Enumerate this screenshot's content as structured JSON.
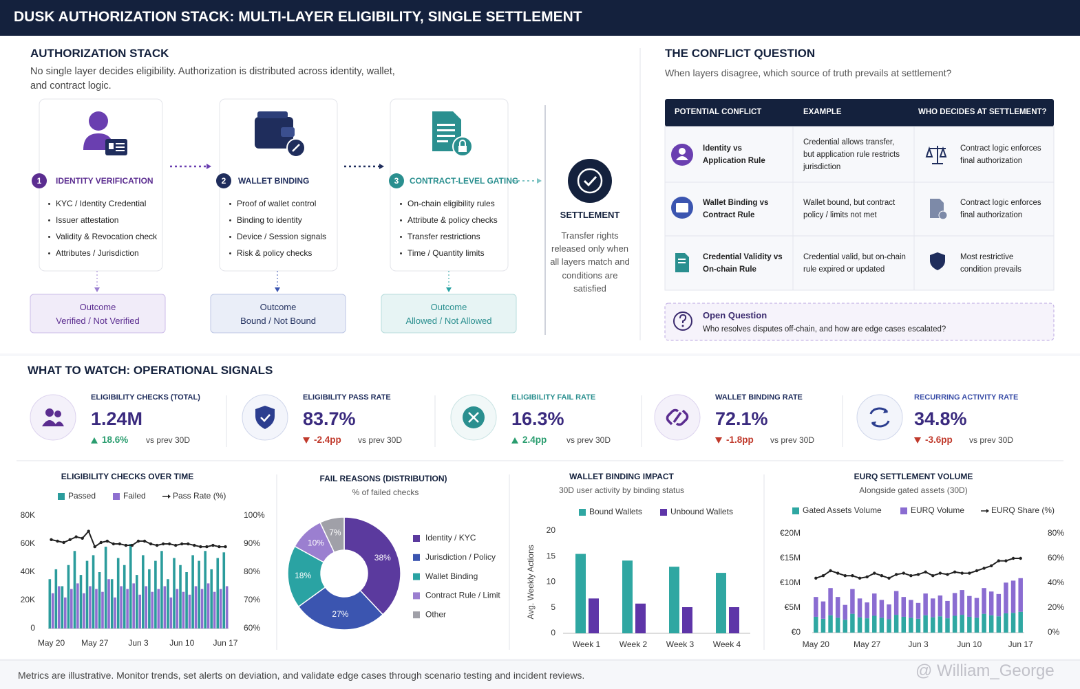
{
  "header": {
    "title": "DUSK AUTHORIZATION STACK: MULTI-LAYER ELIGIBILITY, SINGLE SETTLEMENT"
  },
  "stack": {
    "title": "AUTHORIZATION STACK",
    "description": "No single layer decides eligibility. Authorization is distributed across identity, wallet, and contract logic.",
    "steps": [
      {
        "number": 1,
        "title": "IDENTITY VERIFICATION",
        "items": [
          "KYC / Identity Credential",
          "Issuer attestation",
          "Validity & Revocation check",
          "Attributes / Jurisdiction"
        ],
        "outcome_label": "Outcome",
        "outcome": "Verified / Not Verified",
        "color": "#5b2d90"
      },
      {
        "number": 2,
        "title": "WALLET BINDING",
        "items": [
          "Proof of wallet control",
          "Binding to identity",
          "Device / Session signals",
          "Risk & policy checks"
        ],
        "outcome_label": "Outcome",
        "outcome": "Bound / Not Bound",
        "color": "#1f2d5c"
      },
      {
        "number": 3,
        "title": "CONTRACT-LEVEL GATING",
        "items": [
          "On-chain eligibility rules",
          "Attribute & policy checks",
          "Transfer restrictions",
          "Time / Quantity limits"
        ],
        "outcome_label": "Outcome",
        "outcome": "Allowed / Not Allowed",
        "color": "#2a8f8f"
      }
    ],
    "settlement": {
      "title": "SETTLEMENT",
      "text": "Transfer rights released only when all layers match and conditions are satisfied"
    }
  },
  "conflict": {
    "title": "THE CONFLICT QUESTION",
    "subtitle": "When layers disagree, which source of truth prevails at settlement?",
    "columns": [
      "POTENTIAL CONFLICT",
      "EXAMPLE",
      "WHO DECIDES AT SETTLEMENT?"
    ],
    "rows": [
      [
        "Identity vs Application Rule",
        "Credential allows transfer, but application rule restricts jurisdiction",
        "Contract logic enforces final authorization"
      ],
      [
        "Wallet Binding vs Contract Rule",
        "Wallet bound, but contract policy / limits not met",
        "Contract logic enforces final authorization"
      ],
      [
        "Credential Validity vs On-chain Rule",
        "Credential valid, but on-chain rule expired or updated",
        "Most restrictive condition prevails"
      ]
    ],
    "open_question": {
      "title": "Open Question",
      "text": "Who resolves disputes off-chain, and how are edge cases escalated?"
    }
  },
  "signals": {
    "title": "WHAT TO WATCH: OPERATIONAL SIGNALS",
    "items": [
      {
        "label": "ELIGIBILITY CHECKS (TOTAL)",
        "value": "1.24M",
        "delta": "18.6%",
        "direction": "up",
        "compare": "vs prev 30D",
        "color": "#1f2d5c"
      },
      {
        "label": "ELIGIBILITY PASS RATE",
        "value": "83.7%",
        "delta": "-2.4pp",
        "direction": "down",
        "compare": "vs prev 30D",
        "color": "#1f2d5c"
      },
      {
        "label": "ELIGIBILITY FAIL RATE",
        "value": "16.3%",
        "delta": "2.4pp",
        "direction": "up",
        "compare": "vs prev 30D",
        "color": "#2a8f8f"
      },
      {
        "label": "WALLET BINDING RATE",
        "value": "72.1%",
        "delta": "-1.8pp",
        "direction": "down",
        "compare": "vs prev 30D",
        "color": "#1f2d5c"
      },
      {
        "label": "RECURRING ACTIVITY RATE",
        "value": "34.8%",
        "delta": "-3.6pp",
        "direction": "down",
        "compare": "vs prev 30D",
        "color": "#3b4fa8"
      }
    ]
  },
  "chart_data": [
    {
      "type": "bar",
      "title": "ELIGIBILITY CHECKS OVER TIME",
      "grid": false,
      "categories": [
        "May 20",
        null,
        null,
        null,
        null,
        null,
        null,
        "May 27",
        null,
        null,
        null,
        null,
        null,
        null,
        "Jun 3",
        null,
        null,
        null,
        null,
        null,
        null,
        "Jun 10",
        null,
        null,
        null,
        null,
        null,
        null,
        "Jun 17"
      ],
      "series": [
        {
          "name": "Passed",
          "color": "#2b9c9c",
          "values": [
            35000,
            42000,
            30000,
            45000,
            55000,
            38000,
            48000,
            52000,
            40000,
            58000,
            35000,
            50000,
            45000,
            60000,
            38000,
            52000,
            42000,
            48000,
            55000,
            35000,
            50000,
            45000,
            40000,
            52000,
            48000,
            55000,
            42000,
            50000,
            54000
          ]
        },
        {
          "name": "Failed",
          "color": "#8e6fd0",
          "values": [
            25000,
            30000,
            22000,
            28000,
            32000,
            25000,
            30000,
            28000,
            26000,
            35000,
            22000,
            30000,
            28000,
            32000,
            24000,
            30000,
            26000,
            28000,
            30000,
            22000,
            28000,
            26000,
            24000,
            30000,
            28000,
            32000,
            26000,
            28000,
            30000
          ]
        },
        {
          "name": "Pass Rate (%)",
          "color": "#222222",
          "axis": "y2",
          "values": [
            91.5,
            91,
            90.5,
            91.5,
            92.5,
            92,
            94.5,
            89,
            90.5,
            91,
            90,
            90,
            89.5,
            89.5,
            91,
            91,
            90,
            89.5,
            90,
            90,
            89.5,
            90,
            90,
            89.5,
            89,
            89,
            89.5,
            89,
            89
          ]
        }
      ],
      "ylim": [
        0,
        80000
      ],
      "yticks": [
        0,
        {
          "value": 20000,
          "label": "20K"
        },
        {
          "value": 40000,
          "label": "40K"
        },
        {
          "value": 60000,
          "label": "60K"
        },
        {
          "value": 80000,
          "label": "80K"
        }
      ],
      "y2lim": [
        60,
        100
      ],
      "y2ticks": [
        {
          "value": 60,
          "label": "60%"
        },
        {
          "value": 70,
          "label": "70%"
        },
        {
          "value": 80,
          "label": "80%"
        },
        {
          "value": 90,
          "label": "90%"
        },
        {
          "value": 100,
          "label": "100%"
        }
      ]
    },
    {
      "type": "pie",
      "title": "FAIL REASONS (DISTRIBUTION)",
      "subtitle": "% of failed checks",
      "categories": [
        "Identity / KYC",
        "Jurisdiction / Policy",
        "Wallet Binding",
        "Contract Rule / Limit",
        "Other"
      ],
      "values": [
        38,
        27,
        18,
        10,
        7
      ],
      "value_labels": [
        "38%",
        "27%",
        "18%",
        "10%",
        "7%"
      ],
      "colors": [
        "#5b3a9e",
        "#3b55b0",
        "#2aa3a3",
        "#9b7fd0",
        "#a0a0a8"
      ]
    },
    {
      "type": "bar",
      "title": "WALLET BINDING IMPACT",
      "subtitle": "30D user activity by binding status",
      "y_label": "Avg. Weekly Actions",
      "grid": false,
      "categories": [
        "Week 1",
        "Week 2",
        "Week 3",
        "Week 4"
      ],
      "series": [
        {
          "name": "Bound Wallets",
          "color": "#2fa7a2",
          "values": [
            15.5,
            14.2,
            13,
            11.8
          ]
        },
        {
          "name": "Unbound Wallets",
          "color": "#5e35a8",
          "values": [
            6.8,
            5.8,
            5.1,
            5.1
          ]
        }
      ],
      "ylim": [
        0,
        20
      ],
      "yticks": [
        0,
        5,
        10,
        15,
        20
      ]
    },
    {
      "type": "bar",
      "stacked": true,
      "title": "EURQ SETTLEMENT VOLUME",
      "subtitle": "Alongside gated assets (30D)",
      "grid": false,
      "categories": [
        "May 20",
        null,
        null,
        null,
        null,
        null,
        null,
        "May 27",
        null,
        null,
        null,
        null,
        null,
        null,
        "Jun 3",
        null,
        null,
        null,
        null,
        null,
        null,
        "Jun 10",
        null,
        null,
        null,
        null,
        null,
        null,
        "Jun 17"
      ],
      "series": [
        {
          "name": "Gated Assets Volume",
          "color": "#2fa7a2",
          "values": [
            3200000,
            2800000,
            3500000,
            3000000,
            2600000,
            3800000,
            3100000,
            2900000,
            3400000,
            3000000,
            2700000,
            3600000,
            3200000,
            3000000,
            2800000,
            3500000,
            3100000,
            3300000,
            2900000,
            3400000,
            3600000,
            3200000,
            3000000,
            3800000,
            3500000,
            3300000,
            3900000,
            4000000,
            4200000
          ]
        },
        {
          "name": "EURQ Volume",
          "color": "#8a6cd1",
          "values": [
            4000000,
            3500000,
            5500000,
            4200000,
            3000000,
            5000000,
            3800000,
            3200000,
            4500000,
            3600000,
            3000000,
            4800000,
            4000000,
            3600000,
            3200000,
            4400000,
            3800000,
            4200000,
            3500000,
            4600000,
            5000000,
            4200000,
            4000000,
            5200000,
            4800000,
            4500000,
            6200000,
            6500000,
            6800000
          ]
        },
        {
          "name": "EURQ Share (%)",
          "color": "#222222",
          "axis": "y2",
          "values": [
            44,
            46,
            50,
            48,
            46,
            46,
            44,
            45,
            48,
            46,
            44,
            47,
            48,
            46,
            47,
            49,
            46,
            48,
            47,
            49,
            48,
            48,
            50,
            52,
            54,
            58,
            58,
            60,
            60
          ]
        }
      ],
      "ylim": [
        0,
        20000000
      ],
      "yticks": [
        {
          "value": 0,
          "label": "€0"
        },
        {
          "value": 5000000,
          "label": "€5M"
        },
        {
          "value": 10000000,
          "label": "€10M"
        },
        {
          "value": 15000000,
          "label": "€15M"
        },
        {
          "value": 20000000,
          "label": "€20M"
        }
      ],
      "y2lim": [
        0,
        80
      ],
      "y2ticks": [
        {
          "value": 0,
          "label": "0%"
        },
        {
          "value": 20,
          "label": "20%"
        },
        {
          "value": 40,
          "label": "40%"
        },
        {
          "value": 60,
          "label": "60%"
        },
        {
          "value": 80,
          "label": "80%"
        }
      ]
    }
  ],
  "footer": {
    "text": "Metrics are illustrative. Monitor trends, set alerts on deviation, and validate edge cases through scenario testing and incident reviews.",
    "watermark": "@ William_George"
  }
}
